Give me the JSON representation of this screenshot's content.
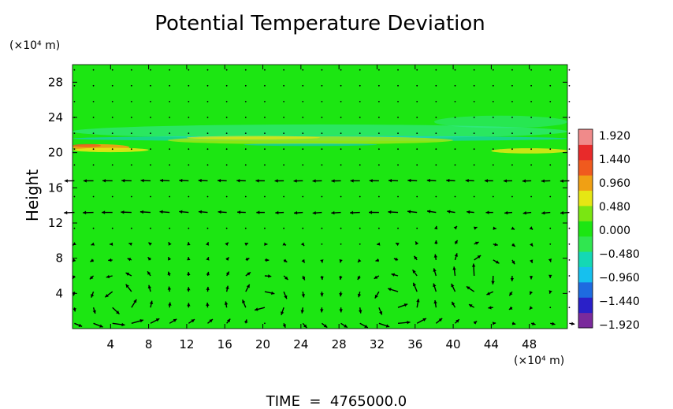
{
  "chart_data": {
    "type": "heatmap",
    "title": "Potential Temperature Deviation",
    "ylabel": "Height",
    "y_unit_label": "(×10⁴ m)",
    "x_unit_label": "(×10⁴ m)",
    "x_range": [
      0,
      52
    ],
    "y_range": [
      0,
      30
    ],
    "x_ticks": [
      4,
      8,
      12,
      16,
      20,
      24,
      28,
      32,
      36,
      40,
      44,
      48
    ],
    "y_ticks": [
      4,
      8,
      12,
      16,
      20,
      24,
      28
    ],
    "x_tick_labels": [
      "4",
      "8",
      "12",
      "16",
      "20",
      "24",
      "28",
      "32",
      "36",
      "40",
      "44",
      "48"
    ],
    "y_tick_labels": [
      "4",
      "8",
      "12",
      "16",
      "20",
      "24",
      "28"
    ],
    "colorbar": {
      "min": -1.92,
      "max": 1.92,
      "labels": [
        "1.920",
        "1.440",
        "0.960",
        "0.480",
        "0.000",
        "−0.480",
        "−0.960",
        "−1.440",
        "−1.920"
      ],
      "colors": [
        "#7a2a9c",
        "#2a20c8",
        "#1e6be0",
        "#16c0ee",
        "#14d8b4",
        "#30e650",
        "#1ce612",
        "#7ae612",
        "#e6e614",
        "#f0a014",
        "#f05a1e",
        "#e82a2a",
        "#f08a8a"
      ]
    },
    "field_background_color": "#1ce612",
    "wind_field": "arrows",
    "footer": "TIME  =  4765000.0"
  }
}
